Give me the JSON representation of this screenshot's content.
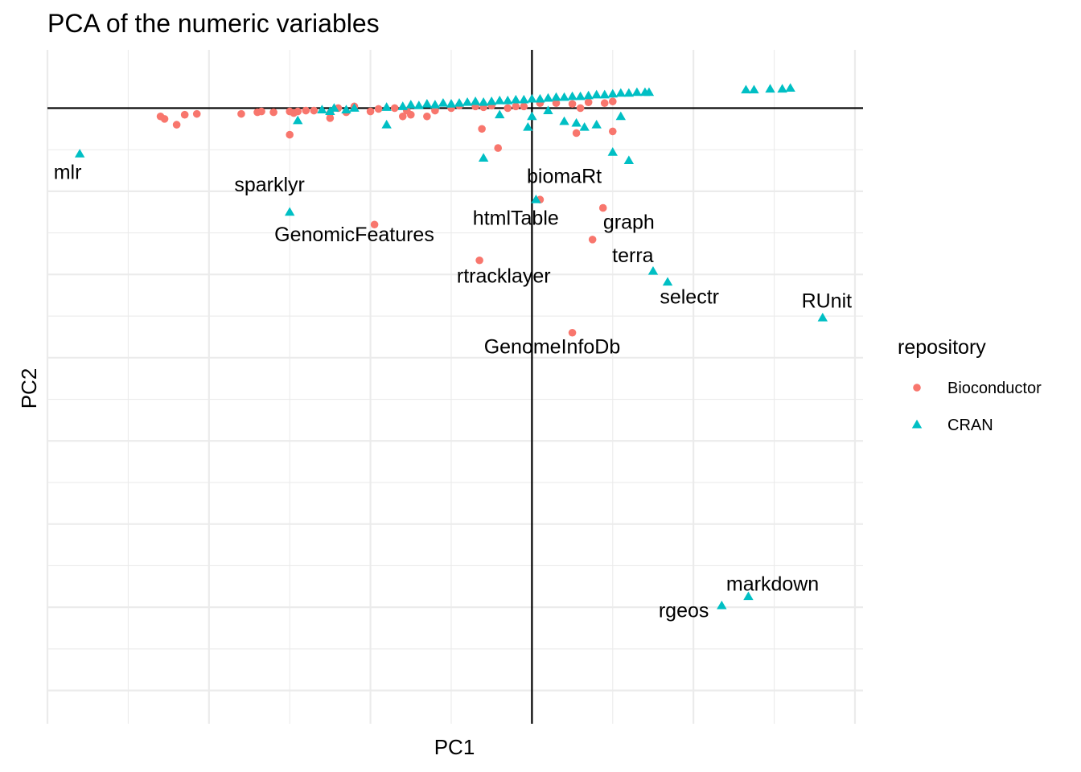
{
  "chart_data": {
    "type": "scatter",
    "title": "PCA of the numeric variables",
    "xlabel": "PC1",
    "ylabel": "PC2",
    "xlim": [
      -6,
      4.1
    ],
    "ylim": [
      -7.4,
      0.7
    ],
    "grid": true,
    "ticks_hidden": true,
    "reference_lines": {
      "x": 0,
      "y": 0
    },
    "colors": {
      "Bioconductor": "#F8766D",
      "CRAN": "#00BFC4",
      "grid": "#EBEBEB",
      "refline": "#000000"
    },
    "legend": {
      "title": "repository",
      "position": "right",
      "entries": [
        {
          "name": "Bioconductor",
          "shape": "circle"
        },
        {
          "name": "CRAN",
          "shape": "triangle"
        }
      ]
    },
    "series": [
      {
        "name": "Bioconductor",
        "shape": "circle",
        "points": [
          [
            -4.6,
            -0.1
          ],
          [
            -4.55,
            -0.13
          ],
          [
            -4.4,
            -0.2
          ],
          [
            -4.3,
            -0.08
          ],
          [
            -4.15,
            -0.07
          ],
          [
            -3.6,
            -0.07
          ],
          [
            -3.4,
            -0.05
          ],
          [
            -3.35,
            -0.04
          ],
          [
            -3.2,
            -0.05
          ],
          [
            -3.0,
            -0.04
          ],
          [
            -2.95,
            -0.06
          ],
          [
            -2.9,
            -0.04
          ],
          [
            -2.8,
            -0.03
          ],
          [
            -2.7,
            -0.03
          ],
          [
            -2.5,
            -0.06
          ],
          [
            -2.4,
            0.0
          ],
          [
            -2.2,
            0.02
          ],
          [
            -2.5,
            -0.12
          ],
          [
            -2.3,
            -0.05
          ],
          [
            -2.0,
            -0.04
          ],
          [
            -1.9,
            -0.01
          ],
          [
            -1.7,
            0.0
          ],
          [
            -1.6,
            -0.1
          ],
          [
            -1.55,
            -0.03
          ],
          [
            -1.5,
            -0.08
          ],
          [
            -1.3,
            -0.1
          ],
          [
            -1.2,
            -0.03
          ],
          [
            -1.0,
            0.0
          ],
          [
            -0.9,
            0.03
          ],
          [
            -0.7,
            0.02
          ],
          [
            -0.6,
            0.01
          ],
          [
            -0.5,
            0.03
          ],
          [
            -0.3,
            0.0
          ],
          [
            -0.2,
            0.02
          ],
          [
            -0.1,
            0.02
          ],
          [
            0.1,
            0.06
          ],
          [
            0.3,
            0.06
          ],
          [
            0.5,
            0.05
          ],
          [
            0.7,
            0.07
          ],
          [
            0.9,
            0.06
          ],
          [
            1.0,
            0.08
          ],
          [
            -3.0,
            -0.32
          ],
          [
            -0.62,
            -0.25
          ],
          [
            -0.42,
            -0.48
          ],
          [
            0.55,
            -0.3
          ],
          [
            1.0,
            -0.28
          ],
          [
            0.6,
            0.0
          ],
          [
            0.75,
            -1.58
          ],
          [
            0.1,
            -1.1
          ],
          [
            0.88,
            -1.2
          ],
          [
            -1.95,
            -1.4
          ],
          [
            -0.65,
            -1.83
          ],
          [
            0.5,
            -2.7
          ]
        ]
      },
      {
        "name": "CRAN",
        "shape": "triangle",
        "points": [
          [
            -5.6,
            -0.55
          ],
          [
            -3.0,
            -1.25
          ],
          [
            -2.6,
            -0.02
          ],
          [
            -2.5,
            -0.04
          ],
          [
            -2.45,
            0.0
          ],
          [
            -2.3,
            -0.02
          ],
          [
            -2.2,
            0.0
          ],
          [
            -1.8,
            0.01
          ],
          [
            -1.6,
            0.02
          ],
          [
            -1.5,
            0.04
          ],
          [
            -1.4,
            0.03
          ],
          [
            -1.3,
            0.05
          ],
          [
            -1.2,
            0.04
          ],
          [
            -1.1,
            0.06
          ],
          [
            -1.0,
            0.05
          ],
          [
            -0.9,
            0.06
          ],
          [
            -0.8,
            0.07
          ],
          [
            -0.7,
            0.08
          ],
          [
            -0.6,
            0.07
          ],
          [
            -0.5,
            0.08
          ],
          [
            -0.4,
            0.09
          ],
          [
            -0.3,
            0.09
          ],
          [
            -0.2,
            0.1
          ],
          [
            -0.1,
            0.1
          ],
          [
            0.0,
            0.11
          ],
          [
            0.1,
            0.11
          ],
          [
            0.2,
            0.12
          ],
          [
            0.3,
            0.13
          ],
          [
            0.4,
            0.13
          ],
          [
            0.5,
            0.14
          ],
          [
            0.6,
            0.14
          ],
          [
            0.7,
            0.15
          ],
          [
            0.8,
            0.16
          ],
          [
            0.9,
            0.16
          ],
          [
            1.0,
            0.17
          ],
          [
            1.1,
            0.18
          ],
          [
            1.2,
            0.18
          ],
          [
            1.3,
            0.19
          ],
          [
            1.4,
            0.19
          ],
          [
            1.45,
            0.19
          ],
          [
            2.65,
            0.22
          ],
          [
            2.75,
            0.22
          ],
          [
            2.95,
            0.23
          ],
          [
            3.1,
            0.23
          ],
          [
            3.2,
            0.24
          ],
          [
            -2.9,
            -0.15
          ],
          [
            -1.8,
            -0.2
          ],
          [
            -0.4,
            -0.08
          ],
          [
            -0.05,
            -0.23
          ],
          [
            0.0,
            -0.1
          ],
          [
            0.2,
            -0.03
          ],
          [
            0.4,
            -0.16
          ],
          [
            0.55,
            -0.18
          ],
          [
            0.65,
            -0.23
          ],
          [
            0.8,
            -0.2
          ],
          [
            1.1,
            -0.1
          ],
          [
            -0.6,
            -0.6
          ],
          [
            1.0,
            -0.53
          ],
          [
            1.2,
            -0.63
          ],
          [
            0.05,
            -1.1
          ],
          [
            1.5,
            -1.96
          ],
          [
            1.68,
            -2.09
          ],
          [
            3.6,
            -2.52
          ],
          [
            2.68,
            -5.87
          ],
          [
            2.35,
            -5.98
          ]
        ]
      }
    ],
    "annotations": [
      {
        "text": "mlr",
        "x": -5.75,
        "y": -0.85
      },
      {
        "text": "sparklyr",
        "x": -3.25,
        "y": -1.0
      },
      {
        "text": "GenomicFeatures",
        "x": -2.2,
        "y": -1.6
      },
      {
        "text": "biomaRt",
        "x": 0.4,
        "y": -0.9
      },
      {
        "text": "htmlTable",
        "x": -0.2,
        "y": -1.4
      },
      {
        "text": "graph",
        "x": 1.2,
        "y": -1.45
      },
      {
        "text": "rtracklayer",
        "x": -0.35,
        "y": -2.1
      },
      {
        "text": "terra",
        "x": 1.25,
        "y": -1.85
      },
      {
        "text": "selectr",
        "x": 1.95,
        "y": -2.35
      },
      {
        "text": "RUnit",
        "x": 3.65,
        "y": -2.4
      },
      {
        "text": "GenomeInfoDb",
        "x": 0.25,
        "y": -2.95
      },
      {
        "text": "markdown",
        "x": 2.98,
        "y": -5.8
      },
      {
        "text": "rgeos",
        "x": 1.88,
        "y": -6.12
      }
    ]
  }
}
